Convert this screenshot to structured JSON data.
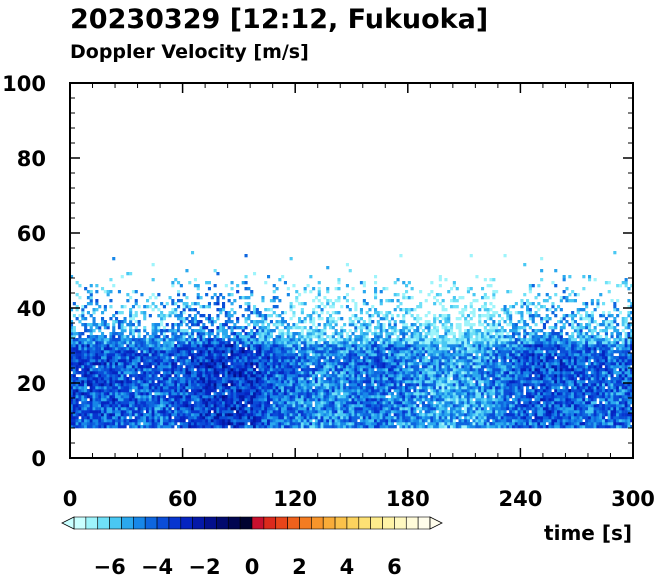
{
  "chart_data": {
    "type": "heatmap",
    "title": "20230329 [12:12, Fukuoka]",
    "subtitle": "Doppler Velocity [m/s]",
    "xlabel": "time [s]",
    "ylabel": "",
    "xlim": [
      0,
      300
    ],
    "ylim": [
      0,
      100
    ],
    "x_ticks": [
      "0",
      "60",
      "120",
      "180",
      "240",
      "300"
    ],
    "y_ticks": [
      "0",
      "20",
      "40",
      "60",
      "80",
      "100"
    ],
    "x_tick_values": [
      0,
      60,
      120,
      180,
      240,
      300
    ],
    "y_tick_values": [
      0,
      20,
      40,
      60,
      80,
      100
    ],
    "data_extent": {
      "x_range": [
        0,
        300
      ],
      "y_bottom": 8,
      "dense_top_approx": 32,
      "sparse_top_approx": 48,
      "max_echo_approx": 55
    },
    "colorbar": {
      "range": [
        -7.5,
        7.5
      ],
      "step": 0.5,
      "tick_labels": [
        "−6",
        "−4",
        "−2",
        "0",
        "2",
        "4",
        "6"
      ],
      "tick_values": [
        -6,
        -4,
        -2,
        0,
        2,
        4,
        6
      ],
      "negative_colors": [
        "#c9ffff",
        "#9ef4fb",
        "#6fe0f7",
        "#49c8f3",
        "#2aa8ee",
        "#1787e8",
        "#0e66df",
        "#0a4dd8",
        "#0735cf",
        "#0524c1",
        "#0418a8",
        "#030f8c",
        "#020a6e",
        "#010650",
        "#000330"
      ],
      "positive_colors": [
        "#c8102e",
        "#dc2a1c",
        "#e8451a",
        "#ef611c",
        "#f47c22",
        "#f7952b",
        "#f9ac38",
        "#fbc24a",
        "#fcd35e",
        "#fde174",
        "#feec8c",
        "#fff3a6",
        "#fff8c0",
        "#fffbd9",
        "#fffdeb"
      ]
    }
  }
}
